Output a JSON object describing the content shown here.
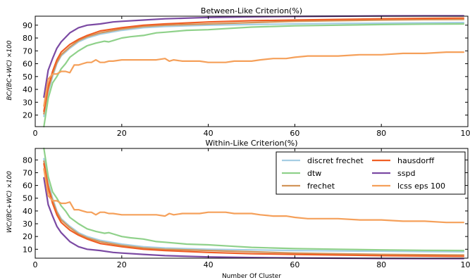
{
  "figure": {
    "xlabel": "Number Of Cluster"
  },
  "chart_data": [
    {
      "type": "line",
      "title": "Between-Like Criterion(%)",
      "ylabel": "BC/(BC+WC) ×100",
      "xlim": [
        0,
        100
      ],
      "ylim": [
        11,
        97
      ],
      "xticks": [
        0,
        20,
        40,
        60,
        80,
        100
      ],
      "yticks": [
        20,
        30,
        40,
        50,
        60,
        70,
        80,
        90
      ],
      "grid": false,
      "series": [
        {
          "name": "discret frechet",
          "color": "#a6cee3",
          "x": [
            2,
            3,
            4,
            5,
            6,
            8,
            10,
            12,
            15,
            20,
            25,
            30,
            40,
            50,
            60,
            70,
            80,
            90,
            99
          ],
          "y": [
            19,
            38,
            50,
            60,
            66,
            72,
            77,
            80,
            83,
            86,
            88,
            89,
            90,
            90.5,
            91,
            91.3,
            91.5,
            91.8,
            92
          ]
        },
        {
          "name": "dtw",
          "color": "#8fd18a",
          "x": [
            2,
            3,
            4,
            5,
            6,
            7,
            8,
            10,
            12,
            14,
            16,
            17,
            18,
            20,
            22,
            25,
            28,
            30,
            35,
            40,
            45,
            50,
            55,
            60,
            70,
            80,
            90,
            99
          ],
          "y": [
            11,
            33,
            45,
            50,
            56,
            60,
            65,
            70,
            74,
            76,
            77.5,
            77,
            78,
            80,
            81,
            82,
            84,
            84.5,
            86,
            86.5,
            87.5,
            88.5,
            89,
            89.5,
            90,
            90.5,
            90.8,
            91
          ]
        },
        {
          "name": "frechet",
          "color": "#d2955a",
          "x": [
            2,
            3,
            4,
            5,
            6,
            8,
            10,
            12,
            15,
            20,
            25,
            30,
            40,
            50,
            60,
            70,
            80,
            90,
            99
          ],
          "y": [
            21,
            40,
            52,
            61,
            67,
            73,
            78,
            81,
            84,
            87,
            89,
            90,
            91,
            92,
            93,
            93.5,
            94,
            94.3,
            94.5
          ]
        },
        {
          "name": "hausdorff",
          "color": "#f05f25",
          "x": [
            2,
            3,
            4,
            5,
            6,
            8,
            10,
            12,
            15,
            20,
            25,
            30,
            40,
            50,
            60,
            70,
            80,
            90,
            99
          ],
          "y": [
            23,
            42,
            54,
            63,
            69,
            75,
            79,
            82,
            85.5,
            88,
            90,
            91,
            92.5,
            93.5,
            94,
            94.5,
            95,
            95.3,
            95.5
          ]
        },
        {
          "name": "sspd",
          "color": "#7b4aa3",
          "x": [
            2,
            3,
            4,
            5,
            6,
            8,
            10,
            12,
            15,
            18,
            20,
            25,
            30,
            40,
            50,
            60,
            70,
            80,
            90,
            99
          ],
          "y": [
            34,
            55,
            64,
            72,
            77,
            84,
            88,
            90,
            91,
            92.5,
            93,
            94,
            95,
            96,
            96.5,
            96.8,
            97,
            97.2,
            97.3,
            97.3
          ]
        },
        {
          "name": "lcss eps 100",
          "color": "#f5a05a",
          "x": [
            2,
            3,
            4,
            5,
            6,
            7,
            8,
            9,
            10,
            11,
            12,
            13,
            14,
            15,
            16,
            17,
            18,
            20,
            22,
            24,
            26,
            28,
            30,
            31,
            32,
            34,
            36,
            38,
            40,
            42,
            44,
            46,
            48,
            50,
            52,
            55,
            58,
            60,
            63,
            66,
            70,
            75,
            80,
            85,
            88,
            90,
            95,
            99
          ],
          "y": [
            27,
            48,
            52,
            52,
            54,
            54,
            53,
            59,
            59,
            60,
            61,
            61,
            63,
            61,
            61,
            62,
            62,
            63,
            63,
            63,
            63,
            63,
            64,
            62,
            63,
            62,
            62,
            62,
            61,
            61,
            61,
            62,
            62,
            62,
            63,
            64,
            64,
            65,
            66,
            66,
            66,
            67,
            67,
            68,
            68,
            68,
            69,
            69
          ]
        }
      ]
    },
    {
      "type": "line",
      "title": "Within-Like Criterion(%)",
      "ylabel": "WC/(BC+WC) ×100",
      "xlim": [
        0,
        100
      ],
      "ylim": [
        3,
        89
      ],
      "xticks": [
        0,
        20,
        40,
        60,
        80,
        100
      ],
      "yticks": [
        10,
        20,
        30,
        40,
        50,
        60,
        70,
        80
      ],
      "grid": false,
      "legend": {
        "placement": "top-right",
        "columns": 2,
        "entries": [
          "discret frechet",
          "dtw",
          "frechet",
          "hausdorff",
          "sspd",
          "lcss  eps 100"
        ]
      },
      "series": [
        {
          "name": "discret frechet",
          "color": "#a6cee3",
          "x": [
            2,
            3,
            4,
            5,
            6,
            8,
            10,
            12,
            15,
            20,
            25,
            30,
            40,
            50,
            60,
            70,
            80,
            90,
            99
          ],
          "y": [
            81,
            62,
            50,
            40,
            34,
            28,
            23,
            20,
            17,
            14,
            12,
            11,
            10,
            9.5,
            9,
            8.7,
            8.5,
            8.2,
            8
          ]
        },
        {
          "name": "dtw",
          "color": "#8fd18a",
          "x": [
            2,
            3,
            4,
            5,
            6,
            7,
            8,
            10,
            12,
            14,
            16,
            17,
            18,
            20,
            22,
            25,
            28,
            30,
            35,
            40,
            45,
            50,
            55,
            60,
            70,
            80,
            90,
            99
          ],
          "y": [
            89,
            67,
            55,
            50,
            44,
            40,
            35,
            30,
            26,
            24,
            22.5,
            23,
            22,
            20,
            19,
            18,
            16,
            15.5,
            14,
            13.5,
            12.5,
            11.5,
            11,
            10.5,
            10,
            9.5,
            9.2,
            9
          ]
        },
        {
          "name": "frechet",
          "color": "#d2955a",
          "x": [
            2,
            3,
            4,
            5,
            6,
            8,
            10,
            12,
            15,
            20,
            25,
            30,
            40,
            50,
            60,
            70,
            80,
            90,
            99
          ],
          "y": [
            79,
            60,
            48,
            39,
            33,
            27,
            22,
            19,
            16,
            13,
            11,
            10,
            9,
            8,
            7,
            6.5,
            6,
            5.7,
            5.5
          ]
        },
        {
          "name": "hausdorff",
          "color": "#f05f25",
          "x": [
            2,
            3,
            4,
            5,
            6,
            8,
            10,
            12,
            15,
            20,
            25,
            30,
            40,
            50,
            60,
            70,
            80,
            90,
            99
          ],
          "y": [
            77,
            58,
            46,
            37,
            31,
            25,
            21,
            18,
            14.5,
            12,
            10,
            9,
            7.5,
            6.5,
            6,
            5.5,
            5,
            4.7,
            4.5
          ]
        },
        {
          "name": "sspd",
          "color": "#7b4aa3",
          "x": [
            2,
            3,
            4,
            5,
            6,
            8,
            10,
            12,
            15,
            18,
            20,
            25,
            30,
            40,
            50,
            60,
            70,
            80,
            90,
            99
          ],
          "y": [
            66,
            45,
            36,
            28,
            23,
            16,
            12,
            10,
            9,
            7.5,
            7,
            6,
            5,
            4,
            3.5,
            3.2,
            3,
            2.8,
            2.7,
            2.7
          ]
        },
        {
          "name": "lcss eps 100",
          "color": "#f5a05a",
          "x": [
            2,
            3,
            4,
            5,
            6,
            7,
            8,
            9,
            10,
            11,
            12,
            13,
            14,
            15,
            16,
            17,
            18,
            20,
            22,
            24,
            26,
            28,
            30,
            31,
            32,
            34,
            36,
            38,
            40,
            42,
            44,
            46,
            48,
            50,
            52,
            55,
            58,
            60,
            63,
            66,
            70,
            75,
            80,
            85,
            88,
            90,
            95,
            99
          ],
          "y": [
            73,
            52,
            48,
            48,
            46,
            46,
            47,
            41,
            41,
            40,
            39,
            39,
            37,
            39,
            39,
            38,
            38,
            37,
            37,
            37,
            37,
            37,
            36,
            38,
            37,
            38,
            38,
            38,
            39,
            39,
            39,
            38,
            38,
            38,
            37,
            36,
            36,
            35,
            34,
            34,
            34,
            33,
            33,
            32,
            32,
            32,
            31,
            31
          ]
        }
      ]
    }
  ]
}
